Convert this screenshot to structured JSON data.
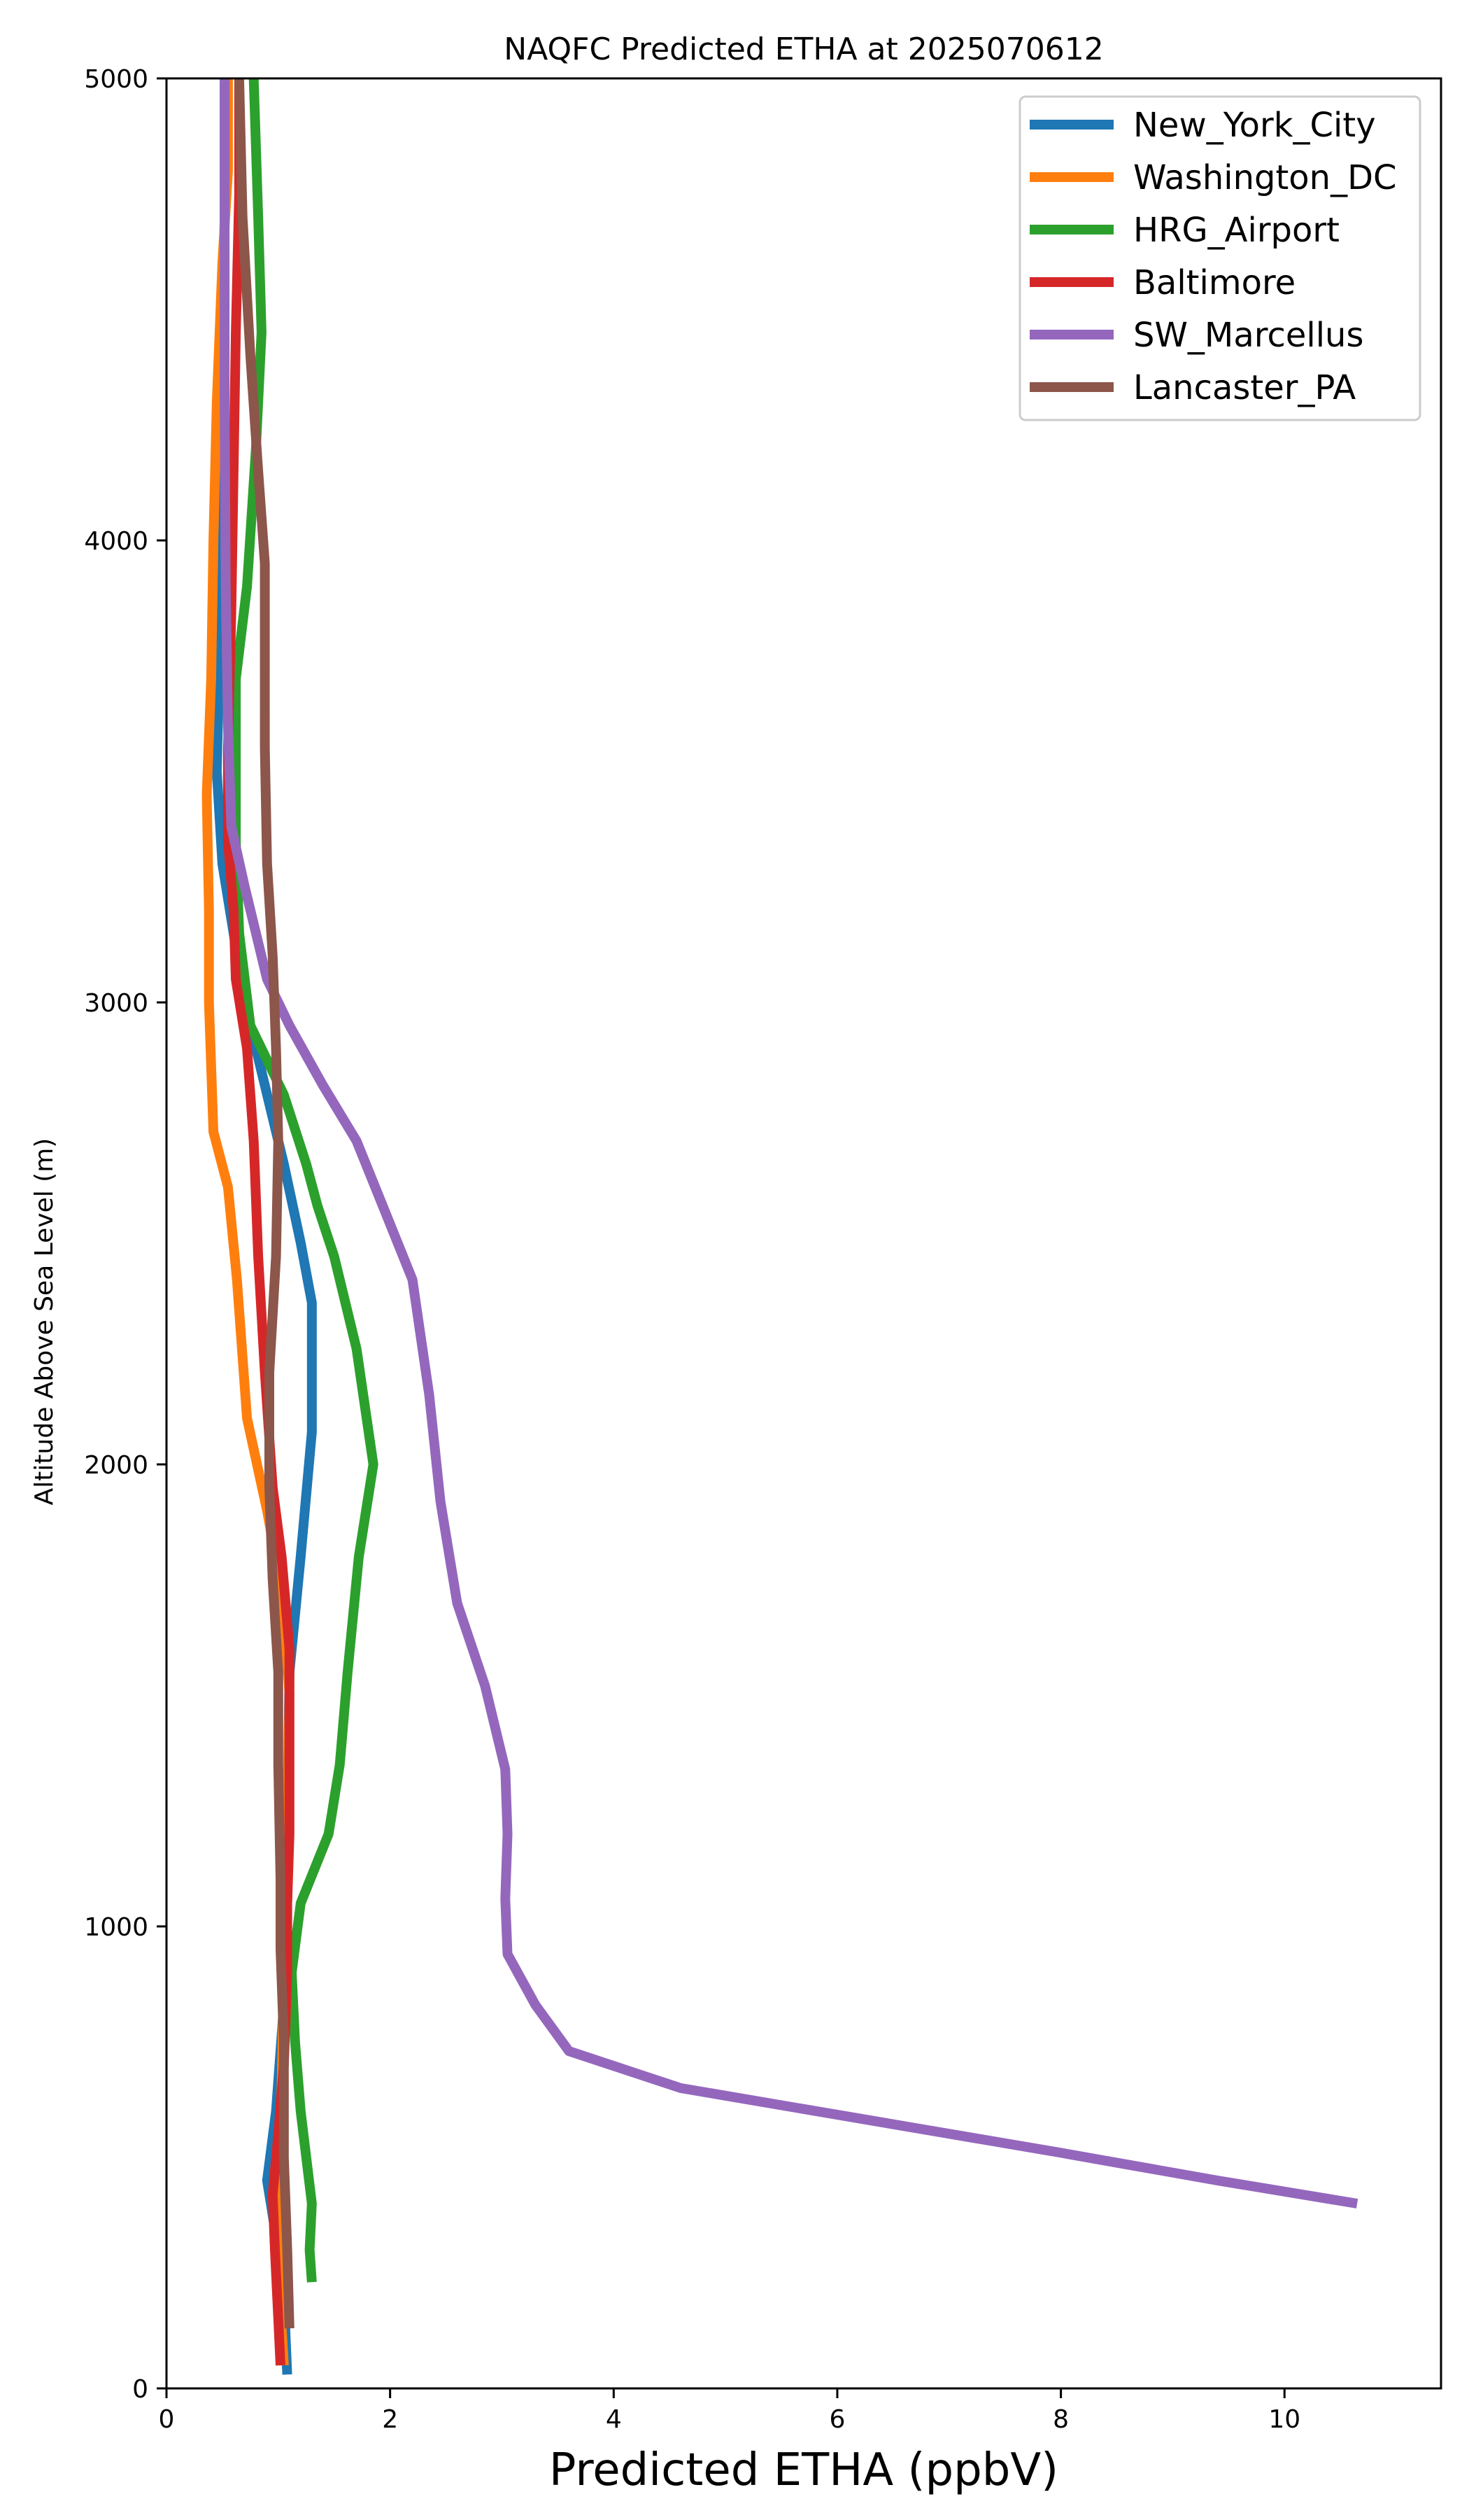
{
  "chart_data": {
    "type": "line",
    "title": "NAQFC Predicted ETHA at 2025070612",
    "xlabel": "Predicted ETHA (ppbV)",
    "ylabel": "Altitude Above Sea Level (m)",
    "xlim": [
      0,
      11.4
    ],
    "ylim": [
      0,
      5000
    ],
    "xticks": [
      "0",
      "2",
      "4",
      "6",
      "8",
      "10"
    ],
    "yticks": [
      "0",
      "1000",
      "2000",
      "3000",
      "4000",
      "5000"
    ],
    "grid": false,
    "legend": "top-right",
    "series": [
      {
        "name": "New_York_City",
        "color": "#1f77b4",
        "points": [
          [
            1.08,
            30
          ],
          [
            1.05,
            200
          ],
          [
            0.98,
            330
          ],
          [
            0.9,
            450
          ],
          [
            0.98,
            600
          ],
          [
            1.05,
            830
          ],
          [
            1.05,
            1000
          ],
          [
            1.08,
            1200
          ],
          [
            1.1,
            1550
          ],
          [
            1.2,
            1800
          ],
          [
            1.3,
            2070
          ],
          [
            1.3,
            2350
          ],
          [
            1.2,
            2480
          ],
          [
            1.05,
            2650
          ],
          [
            0.85,
            2850
          ],
          [
            0.7,
            3000
          ],
          [
            0.5,
            3300
          ],
          [
            0.45,
            3500
          ],
          [
            0.48,
            3800
          ],
          [
            0.5,
            4100
          ],
          [
            0.5,
            4400
          ],
          [
            0.52,
            4700
          ],
          [
            0.52,
            5000
          ]
        ]
      },
      {
        "name": "Washington_DC",
        "color": "#ff7f0e",
        "points": [
          [
            1.05,
            50
          ],
          [
            1.0,
            250
          ],
          [
            1.0,
            450
          ],
          [
            1.03,
            650
          ],
          [
            1.05,
            900
          ],
          [
            1.08,
            1200
          ],
          [
            1.1,
            1500
          ],
          [
            1.05,
            1700
          ],
          [
            0.9,
            1900
          ],
          [
            0.72,
            2100
          ],
          [
            0.63,
            2400
          ],
          [
            0.55,
            2600
          ],
          [
            0.42,
            2720
          ],
          [
            0.38,
            3000
          ],
          [
            0.38,
            3200
          ],
          [
            0.36,
            3450
          ],
          [
            0.4,
            3700
          ],
          [
            0.42,
            4000
          ],
          [
            0.45,
            4300
          ],
          [
            0.5,
            4600
          ],
          [
            0.55,
            4800
          ],
          [
            0.55,
            5000
          ]
        ]
      },
      {
        "name": "HRG_Airport",
        "color": "#2ca02c",
        "points": [
          [
            1.3,
            230
          ],
          [
            1.28,
            300
          ],
          [
            1.3,
            400
          ],
          [
            1.25,
            500
          ],
          [
            1.2,
            600
          ],
          [
            1.15,
            750
          ],
          [
            1.12,
            900
          ],
          [
            1.2,
            1050
          ],
          [
            1.45,
            1200
          ],
          [
            1.55,
            1350
          ],
          [
            1.62,
            1550
          ],
          [
            1.72,
            1800
          ],
          [
            1.85,
            2000
          ],
          [
            1.7,
            2250
          ],
          [
            1.5,
            2450
          ],
          [
            1.35,
            2560
          ],
          [
            1.25,
            2650
          ],
          [
            1.05,
            2800
          ],
          [
            0.75,
            2950
          ],
          [
            0.65,
            3150
          ],
          [
            0.62,
            3350
          ],
          [
            0.62,
            3700
          ],
          [
            0.72,
            3900
          ],
          [
            0.8,
            4200
          ],
          [
            0.85,
            4450
          ],
          [
            0.82,
            4700
          ],
          [
            0.78,
            5000
          ]
        ]
      },
      {
        "name": "Baltimore",
        "color": "#d62728",
        "points": [
          [
            1.02,
            50
          ],
          [
            1.0,
            150
          ],
          [
            0.97,
            300
          ],
          [
            0.95,
            420
          ],
          [
            1.0,
            550
          ],
          [
            1.05,
            700
          ],
          [
            1.08,
            900
          ],
          [
            1.08,
            1050
          ],
          [
            1.1,
            1200
          ],
          [
            1.1,
            1400
          ],
          [
            1.1,
            1600
          ],
          [
            1.03,
            1800
          ],
          [
            0.95,
            1950
          ],
          [
            0.88,
            2200
          ],
          [
            0.82,
            2450
          ],
          [
            0.78,
            2700
          ],
          [
            0.72,
            2900
          ],
          [
            0.62,
            3050
          ],
          [
            0.6,
            3200
          ],
          [
            0.55,
            3350
          ],
          [
            0.55,
            3550
          ],
          [
            0.58,
            3850
          ],
          [
            0.6,
            4150
          ],
          [
            0.62,
            4450
          ],
          [
            0.65,
            4750
          ],
          [
            0.65,
            5000
          ]
        ]
      },
      {
        "name": "SW_Marcellus",
        "color": "#9467bd",
        "points": [
          [
            10.65,
            400
          ],
          [
            9.4,
            450
          ],
          [
            8.0,
            510
          ],
          [
            6.3,
            580
          ],
          [
            4.6,
            650
          ],
          [
            4.1,
            690
          ],
          [
            3.6,
            730
          ],
          [
            3.3,
            830
          ],
          [
            3.05,
            940
          ],
          [
            3.03,
            1060
          ],
          [
            3.05,
            1200
          ],
          [
            3.03,
            1340
          ],
          [
            2.85,
            1520
          ],
          [
            2.6,
            1700
          ],
          [
            2.45,
            1920
          ],
          [
            2.35,
            2150
          ],
          [
            2.2,
            2400
          ],
          [
            1.95,
            2550
          ],
          [
            1.7,
            2700
          ],
          [
            1.4,
            2820
          ],
          [
            1.1,
            2950
          ],
          [
            0.9,
            3050
          ],
          [
            0.7,
            3250
          ],
          [
            0.58,
            3380
          ],
          [
            0.55,
            3600
          ],
          [
            0.53,
            3900
          ],
          [
            0.52,
            4300
          ],
          [
            0.52,
            4650
          ],
          [
            0.52,
            5000
          ]
        ]
      },
      {
        "name": "Lancaster_PA",
        "color": "#8c564b",
        "points": [
          [
            1.1,
            130
          ],
          [
            1.08,
            300
          ],
          [
            1.05,
            500
          ],
          [
            1.05,
            750
          ],
          [
            1.02,
            950
          ],
          [
            1.02,
            1100
          ],
          [
            1.0,
            1350
          ],
          [
            1.0,
            1550
          ],
          [
            0.95,
            1750
          ],
          [
            0.92,
            1950
          ],
          [
            0.92,
            2200
          ],
          [
            0.98,
            2450
          ],
          [
            1.0,
            2700
          ],
          [
            0.98,
            2900
          ],
          [
            0.95,
            3100
          ],
          [
            0.9,
            3300
          ],
          [
            0.88,
            3550
          ],
          [
            0.88,
            3750
          ],
          [
            0.88,
            3950
          ],
          [
            0.82,
            4150
          ],
          [
            0.75,
            4400
          ],
          [
            0.68,
            4700
          ],
          [
            0.65,
            5000
          ]
        ]
      }
    ]
  }
}
